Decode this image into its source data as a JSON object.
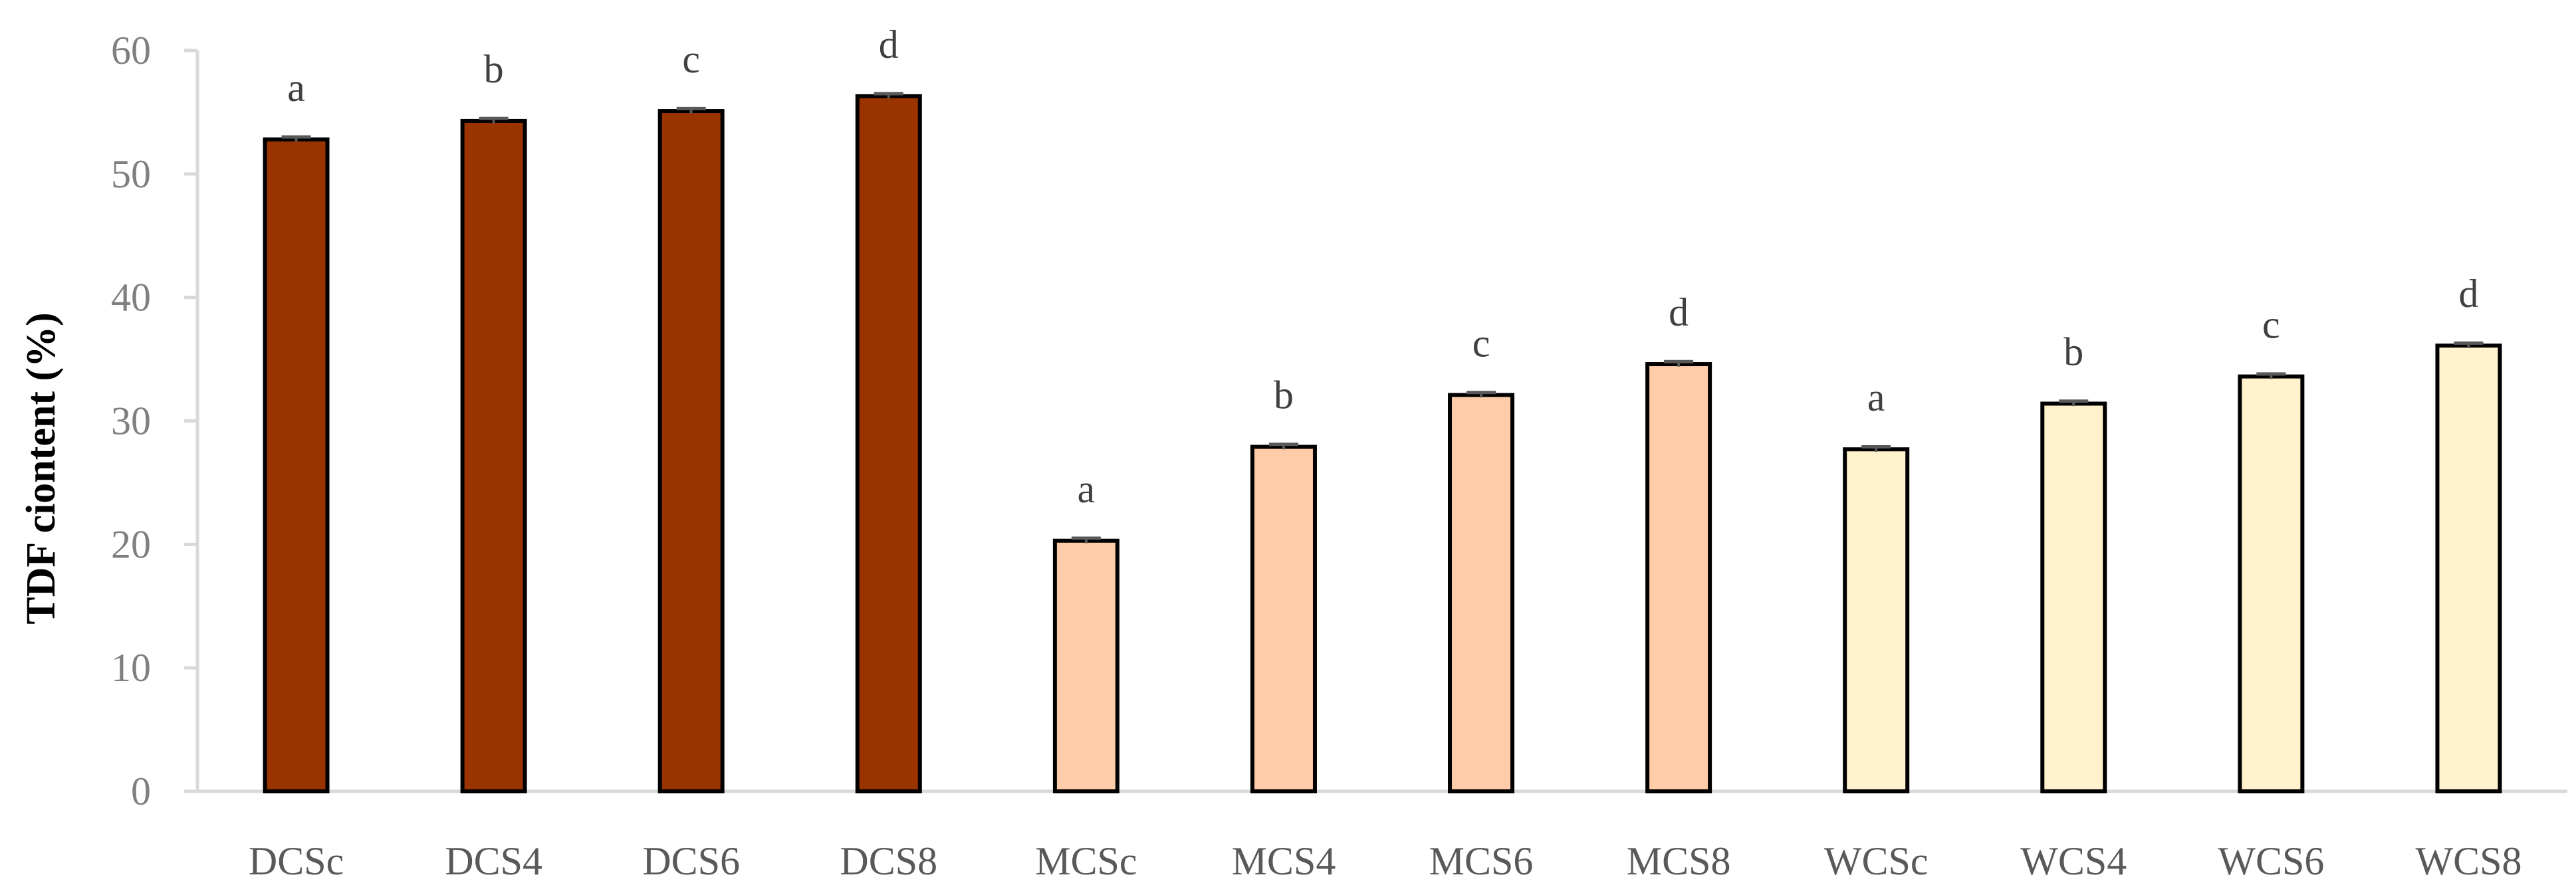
{
  "chart_data": {
    "type": "bar",
    "title": "",
    "xlabel": "",
    "ylabel": "TDF ciontent (%)",
    "ylim": [
      0,
      60
    ],
    "yticks": [
      0,
      10,
      20,
      30,
      40,
      50,
      60
    ],
    "grid": false,
    "legend": "none",
    "categories": [
      "DCSc",
      "DCS4",
      "DCS6",
      "DCS8",
      "MCSc",
      "MCS4",
      "MCS6",
      "MCS8",
      "WCSc",
      "WCS4",
      "WCS6",
      "WCS8"
    ],
    "values": [
      52.8,
      54.3,
      55.1,
      56.3,
      20.3,
      27.9,
      32.1,
      34.6,
      27.7,
      31.4,
      33.6,
      36.1
    ],
    "error": [
      0.2,
      0.2,
      0.2,
      0.2,
      0.2,
      0.2,
      0.2,
      0.2,
      0.2,
      0.2,
      0.2,
      0.2
    ],
    "significance_labels": [
      "a",
      "b",
      "c",
      "d",
      "a",
      "b",
      "c",
      "d",
      "a",
      "b",
      "c",
      "d"
    ],
    "bar_colors": [
      "#993300",
      "#993300",
      "#993300",
      "#993300",
      "#FFCCAA",
      "#FFCCAA",
      "#FFCCAA",
      "#FFCCAA",
      "#FFF2CC",
      "#FFF2CC",
      "#FFF2CC",
      "#FFF2CC"
    ],
    "axis_color": "#d9d9d9",
    "bar_edge_color": "#000000"
  }
}
